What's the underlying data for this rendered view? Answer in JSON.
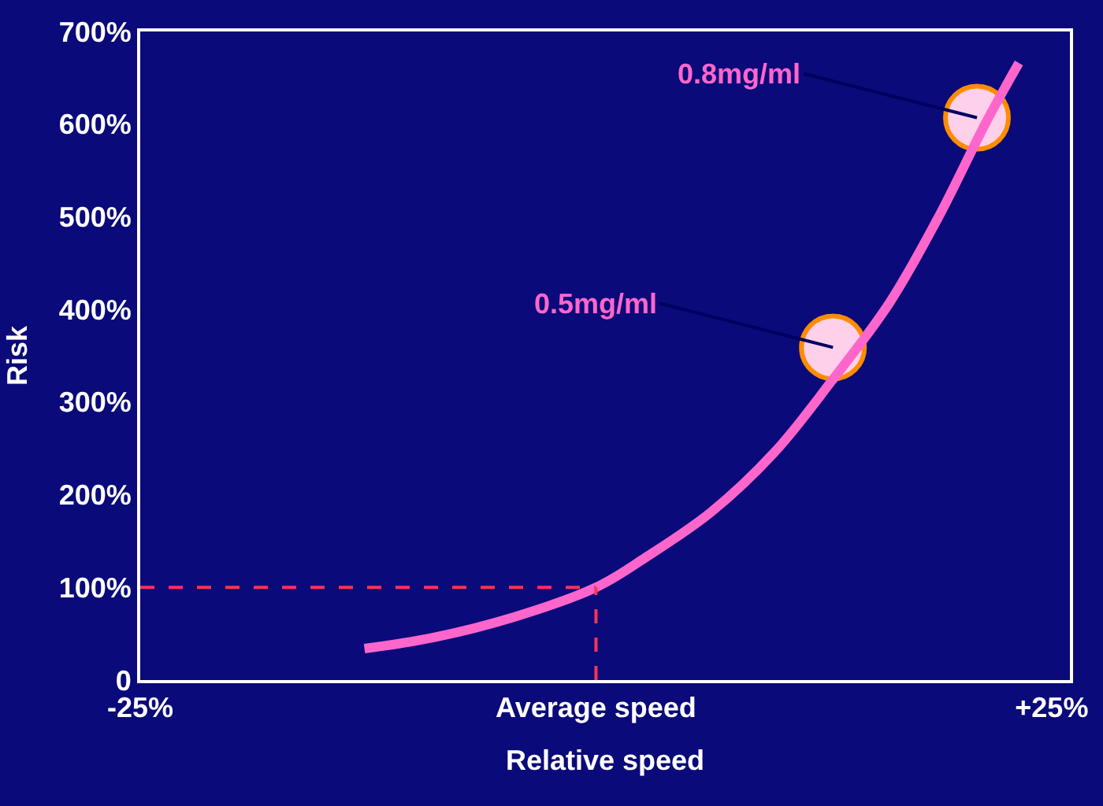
{
  "chart_data": {
    "type": "line",
    "xlabel": "Relative speed",
    "ylabel": "Risk",
    "xlim": [
      -25,
      26
    ],
    "ylim": [
      0,
      700
    ],
    "xticks": [
      {
        "value": -25,
        "label": "-25%"
      },
      {
        "value": 0,
        "label": "Average speed"
      },
      {
        "value": 25,
        "label": "+25%"
      }
    ],
    "yticks": [
      {
        "value": 0,
        "label": "0"
      },
      {
        "value": 100,
        "label": "100%"
      },
      {
        "value": 200,
        "label": "200%"
      },
      {
        "value": 300,
        "label": "300%"
      },
      {
        "value": 400,
        "label": "400%"
      },
      {
        "value": 500,
        "label": "500%"
      },
      {
        "value": 600,
        "label": "600%"
      },
      {
        "value": 700,
        "label": "700%"
      }
    ],
    "grid": false,
    "legend": false,
    "series": [
      {
        "color": "#ff66cc",
        "marker": "none",
        "x": [
          -12.7,
          -8.9,
          -4.5,
          0,
          2.7,
          6.3,
          9.8,
          12.9,
          16.1,
          18.8,
          21.4,
          23.2
        ],
        "values": [
          34,
          46,
          68,
          100,
          132,
          181,
          246,
          322,
          407,
          500,
          602,
          666
        ]
      },
      {
        "type": "scatter",
        "color": "#ffd0ea",
        "marker": "circle",
        "x": [
          13,
          20.9
        ],
        "values": [
          359,
          607
        ]
      }
    ],
    "ref_lines": [
      {
        "axis": "y",
        "value": 100,
        "color": "#ff3355",
        "line_style": "dashed"
      },
      {
        "axis": "x",
        "value": 0,
        "color": "#ff3355",
        "line_style": "dashed"
      }
    ],
    "annotations": [
      {
        "text": "0.5mg/ml",
        "x": 13,
        "y": 359
      },
      {
        "text": "0.8mg/ml",
        "x": 20.9,
        "y": 607
      }
    ]
  }
}
